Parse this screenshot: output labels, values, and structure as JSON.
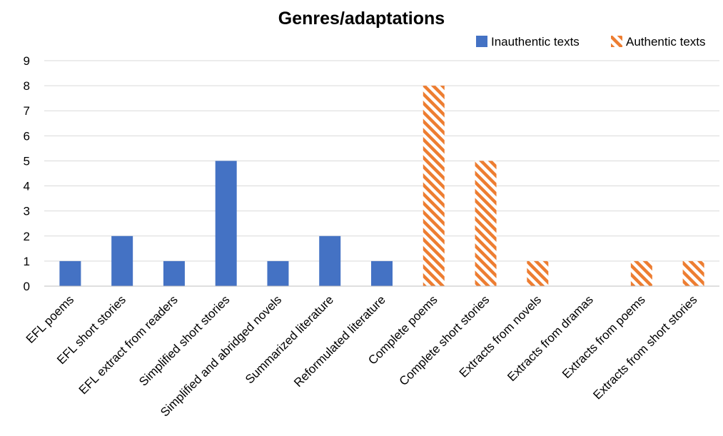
{
  "chart_data": {
    "type": "bar",
    "title": "Genres/adaptations",
    "xlabel": "",
    "ylabel": "",
    "ylim": [
      0,
      9
    ],
    "yticks": [
      0,
      1,
      2,
      3,
      4,
      5,
      6,
      7,
      8,
      9
    ],
    "grid": true,
    "legend_position": "top-right",
    "categories": [
      "EFL poems",
      "EFL short stories",
      "EFL extract from readers",
      "Simplified short stories",
      "Simplified and abridged novels",
      "Summarized literature",
      "Reformulated literature",
      "Complete poems",
      "Complete short stories",
      "Extracts from novels",
      "Extracts from dramas",
      "Extracts from poems",
      "Extracts from short stories"
    ],
    "series": [
      {
        "name": "Inauthentic texts",
        "color": "#4472C4",
        "pattern": "solid",
        "values": [
          1,
          2,
          1,
          5,
          1,
          2,
          1,
          0,
          0,
          0,
          0,
          0,
          0
        ]
      },
      {
        "name": "Authentic texts",
        "color": "#ED7D31",
        "pattern": "diagonal-stripes",
        "values": [
          0,
          0,
          0,
          0,
          0,
          0,
          0,
          8,
          5,
          1,
          0,
          1,
          1
        ]
      }
    ]
  }
}
